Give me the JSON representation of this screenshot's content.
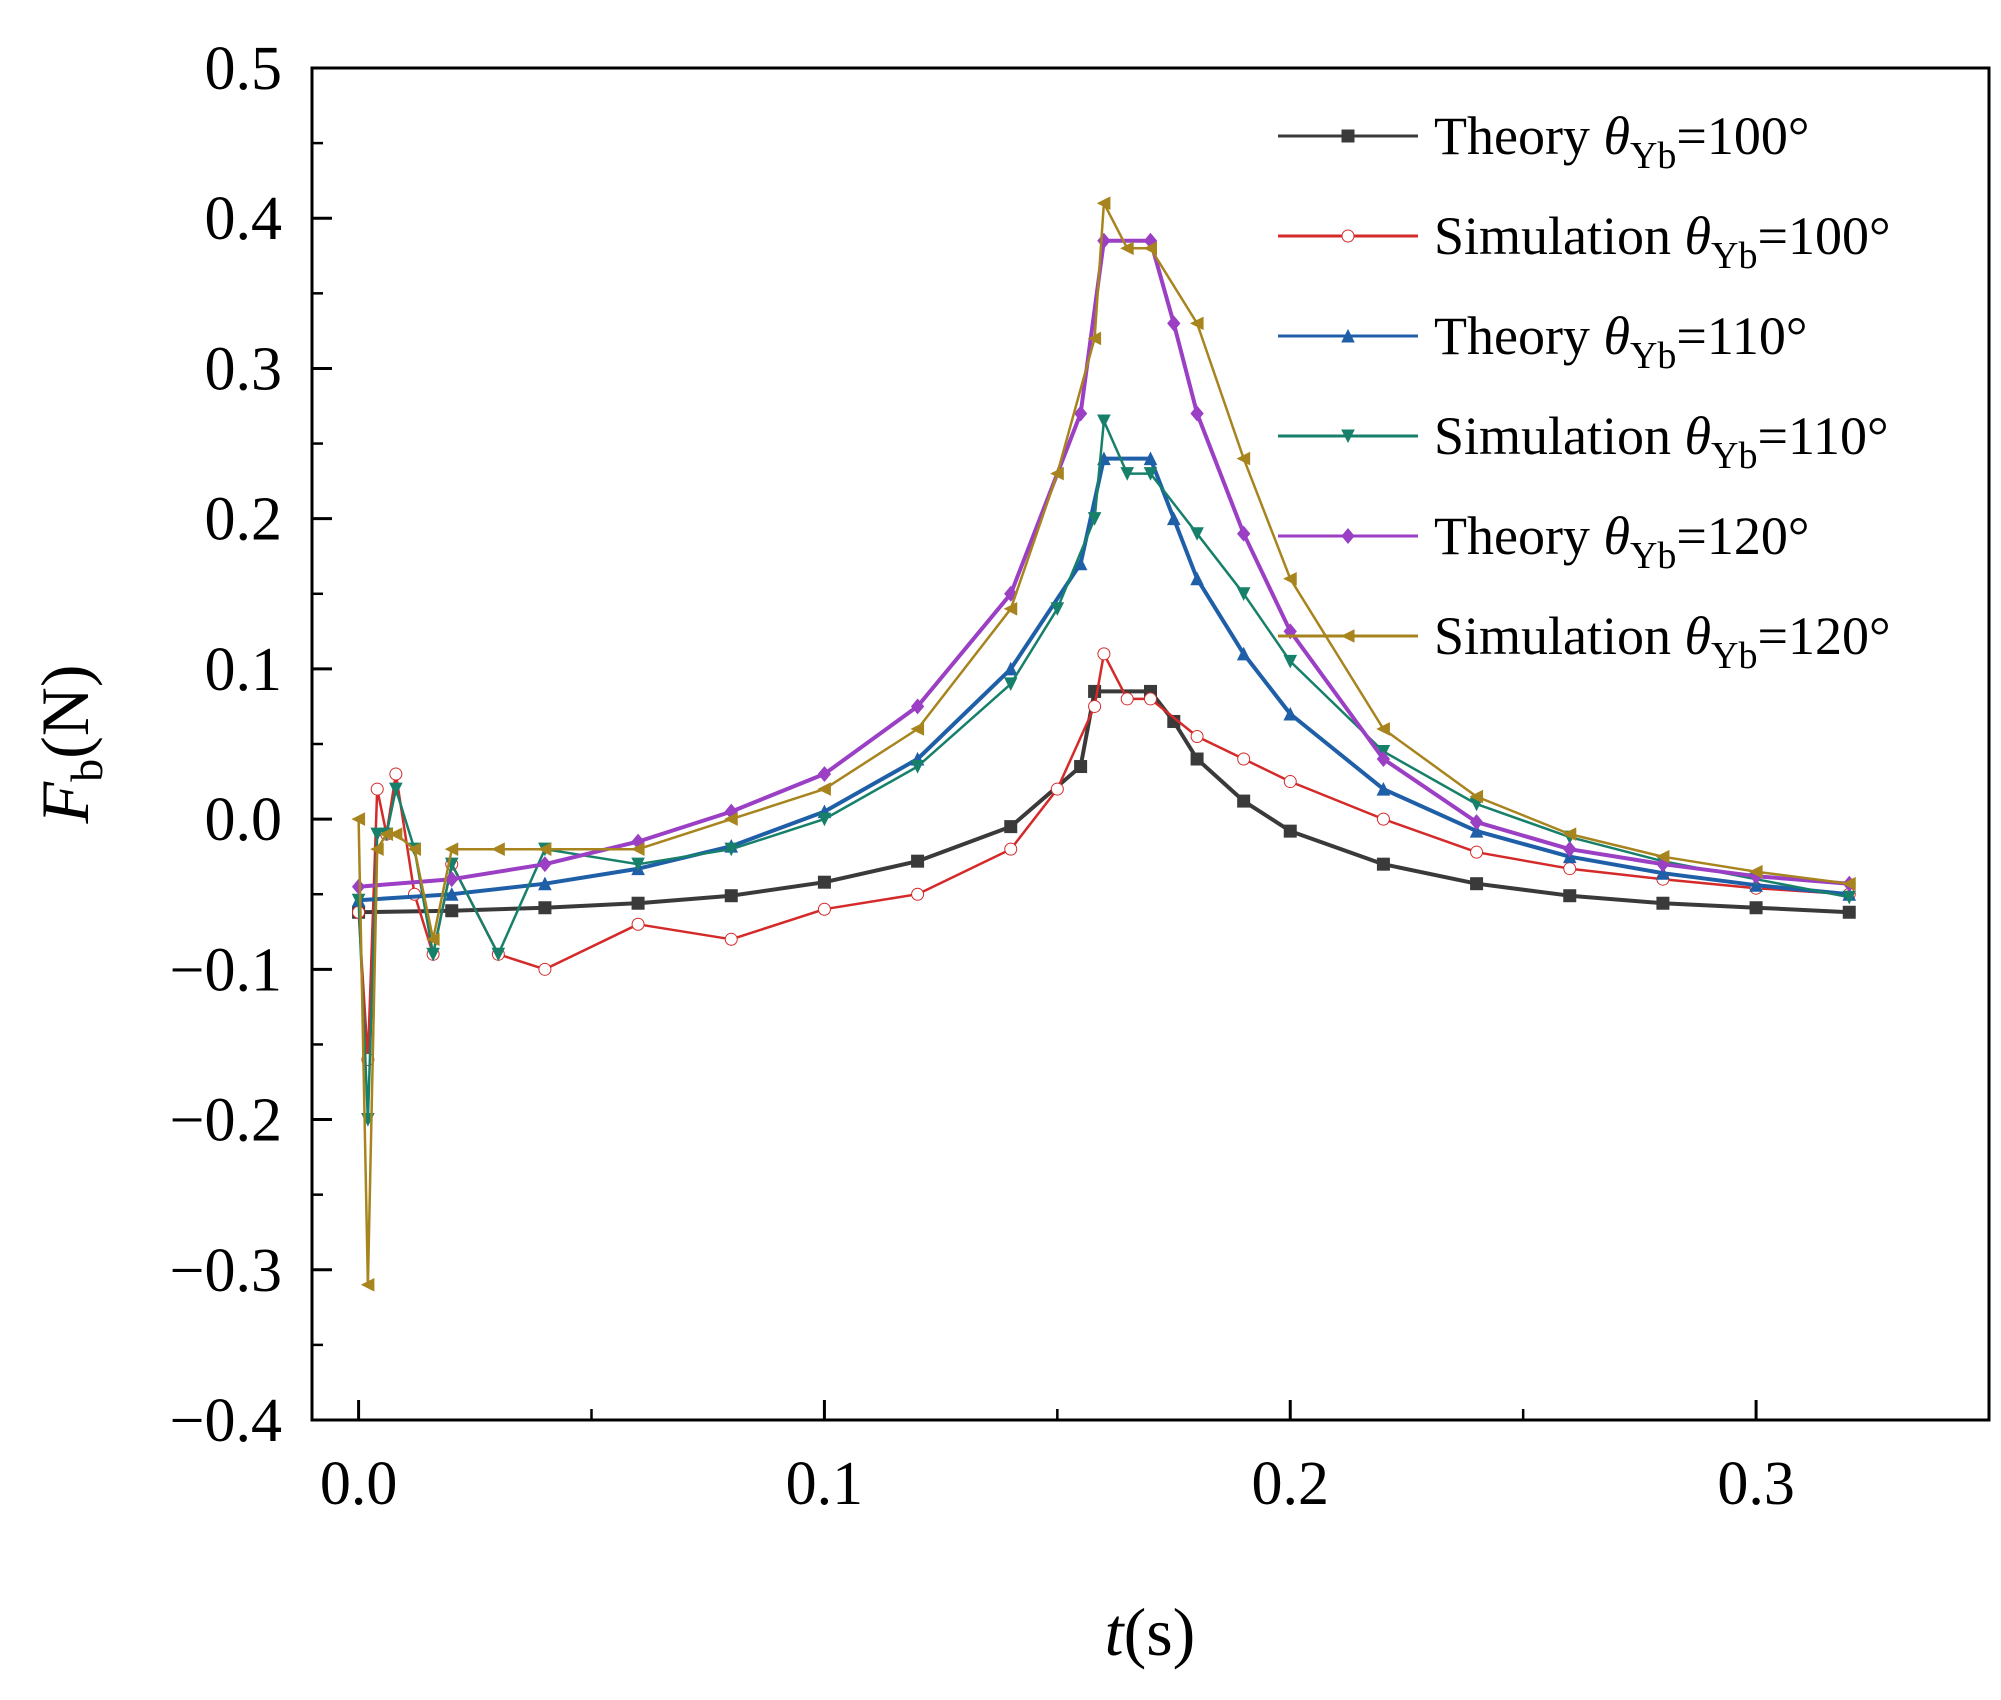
{
  "chart_data": {
    "type": "line",
    "title": "",
    "xlabel": {
      "var": "t",
      "unit": "(s)"
    },
    "ylabel": {
      "var": "F",
      "sub": "b",
      "unit": "(N)"
    },
    "xlim": [
      -0.01,
      0.35
    ],
    "ylim": [
      -0.4,
      0.5
    ],
    "xticks": [
      0.0,
      0.1,
      0.2,
      0.3
    ],
    "xtick_labels": [
      "0.0",
      "0.1",
      "0.2",
      "0.3"
    ],
    "yticks": [
      -0.4,
      -0.3,
      -0.2,
      -0.1,
      0.0,
      0.1,
      0.2,
      0.3,
      0.4,
      0.5
    ],
    "ytick_labels": [
      "−0.4",
      "−0.3",
      "−0.2",
      "−0.1",
      "0.0",
      "0.1",
      "0.2",
      "0.3",
      "0.4",
      "0.5"
    ],
    "legend_position": "top-right",
    "series": [
      {
        "name": "Theory θYb=100°",
        "label_prefix": "Theory ",
        "label_theta": "θ",
        "label_sub": "Yb",
        "label_suffix": "=100°",
        "color": "#3a3a3a",
        "marker": "square",
        "kind": "theory",
        "x": [
          0.0,
          0.02,
          0.04,
          0.06,
          0.08,
          0.1,
          0.12,
          0.14,
          0.155,
          0.158,
          0.17,
          0.175,
          0.18,
          0.19,
          0.2,
          0.22,
          0.24,
          0.26,
          0.28,
          0.3,
          0.32
        ],
        "y": [
          -0.062,
          -0.061,
          -0.059,
          -0.056,
          -0.051,
          -0.042,
          -0.028,
          -0.005,
          0.035,
          0.085,
          0.085,
          0.065,
          0.04,
          0.012,
          -0.008,
          -0.03,
          -0.043,
          -0.051,
          -0.056,
          -0.059,
          -0.062
        ]
      },
      {
        "name": "Simulation θYb=100°",
        "label_prefix": "Simulation ",
        "label_theta": "θ",
        "label_sub": "Yb",
        "label_suffix": "=100°",
        "color": "#d42a2a",
        "marker": "circle",
        "kind": "simulation",
        "x": [
          0.0,
          0.002,
          0.004,
          0.006,
          0.008,
          0.012,
          0.016,
          0.02,
          0.03,
          0.04,
          0.06,
          0.08,
          0.1,
          0.12,
          0.14,
          0.15,
          0.158,
          0.16,
          0.165,
          0.17,
          0.18,
          0.19,
          0.2,
          0.22,
          0.24,
          0.26,
          0.28,
          0.3,
          0.32
        ],
        "y": [
          -0.062,
          -0.16,
          0.02,
          -0.01,
          0.03,
          -0.05,
          -0.09,
          -0.03,
          -0.09,
          -0.1,
          -0.07,
          -0.08,
          -0.06,
          -0.05,
          -0.02,
          0.02,
          0.075,
          0.11,
          0.08,
          0.08,
          0.055,
          0.04,
          0.025,
          0.0,
          -0.022,
          -0.033,
          -0.04,
          -0.046,
          -0.05
        ]
      },
      {
        "name": "Theory θYb=110°",
        "label_prefix": "Theory ",
        "label_theta": "θ",
        "label_sub": "Yb",
        "label_suffix": "=110°",
        "color": "#1f5fa8",
        "marker": "triangle-up",
        "kind": "theory",
        "x": [
          0.0,
          0.02,
          0.04,
          0.06,
          0.08,
          0.1,
          0.12,
          0.14,
          0.155,
          0.16,
          0.17,
          0.175,
          0.18,
          0.19,
          0.2,
          0.22,
          0.24,
          0.26,
          0.28,
          0.3,
          0.32
        ],
        "y": [
          -0.054,
          -0.05,
          -0.043,
          -0.033,
          -0.018,
          0.005,
          0.04,
          0.1,
          0.17,
          0.24,
          0.24,
          0.2,
          0.16,
          0.11,
          0.07,
          0.02,
          -0.008,
          -0.025,
          -0.036,
          -0.044,
          -0.05
        ]
      },
      {
        "name": "Simulation θYb=110°",
        "label_prefix": "Simulation ",
        "label_theta": "θ",
        "label_sub": "Yb",
        "label_suffix": "=110°",
        "color": "#17806a",
        "marker": "triangle-down",
        "kind": "simulation",
        "x": [
          0.0,
          0.002,
          0.004,
          0.006,
          0.008,
          0.012,
          0.016,
          0.02,
          0.03,
          0.04,
          0.06,
          0.08,
          0.1,
          0.12,
          0.14,
          0.15,
          0.158,
          0.16,
          0.165,
          0.17,
          0.18,
          0.19,
          0.2,
          0.22,
          0.24,
          0.26,
          0.28,
          0.3,
          0.32
        ],
        "y": [
          -0.054,
          -0.2,
          -0.01,
          -0.01,
          0.02,
          -0.02,
          -0.09,
          -0.03,
          -0.09,
          -0.02,
          -0.03,
          -0.02,
          0.0,
          0.035,
          0.09,
          0.14,
          0.2,
          0.265,
          0.23,
          0.23,
          0.19,
          0.15,
          0.105,
          0.045,
          0.01,
          -0.012,
          -0.028,
          -0.04,
          -0.052
        ]
      },
      {
        "name": "Theory θYb=120°",
        "label_prefix": "Theory ",
        "label_theta": "θ",
        "label_sub": "Yb",
        "label_suffix": "=120°",
        "color": "#9b3fc4",
        "marker": "diamond",
        "kind": "theory",
        "x": [
          0.0,
          0.02,
          0.04,
          0.06,
          0.08,
          0.1,
          0.12,
          0.14,
          0.155,
          0.16,
          0.17,
          0.175,
          0.18,
          0.19,
          0.2,
          0.22,
          0.24,
          0.26,
          0.28,
          0.3,
          0.32
        ],
        "y": [
          -0.045,
          -0.04,
          -0.03,
          -0.015,
          0.005,
          0.03,
          0.075,
          0.15,
          0.27,
          0.385,
          0.385,
          0.33,
          0.27,
          0.19,
          0.125,
          0.04,
          -0.002,
          -0.02,
          -0.03,
          -0.038,
          -0.043
        ]
      },
      {
        "name": "Simulation θYb=120°",
        "label_prefix": "Simulation ",
        "label_theta": "θ",
        "label_sub": "Yb",
        "label_suffix": "=120°",
        "color": "#a8841e",
        "marker": "triangle-left",
        "kind": "simulation",
        "x": [
          0.0,
          0.002,
          0.004,
          0.006,
          0.008,
          0.012,
          0.016,
          0.02,
          0.03,
          0.04,
          0.06,
          0.08,
          0.1,
          0.12,
          0.14,
          0.15,
          0.158,
          0.16,
          0.165,
          0.17,
          0.18,
          0.19,
          0.2,
          0.22,
          0.24,
          0.26,
          0.28,
          0.3,
          0.32
        ],
        "y": [
          0.0,
          -0.31,
          -0.02,
          -0.01,
          -0.01,
          -0.02,
          -0.08,
          -0.02,
          -0.02,
          -0.02,
          -0.02,
          0.0,
          0.02,
          0.06,
          0.14,
          0.23,
          0.32,
          0.41,
          0.38,
          0.38,
          0.33,
          0.24,
          0.16,
          0.06,
          0.015,
          -0.01,
          -0.025,
          -0.035,
          -0.043
        ]
      }
    ]
  }
}
